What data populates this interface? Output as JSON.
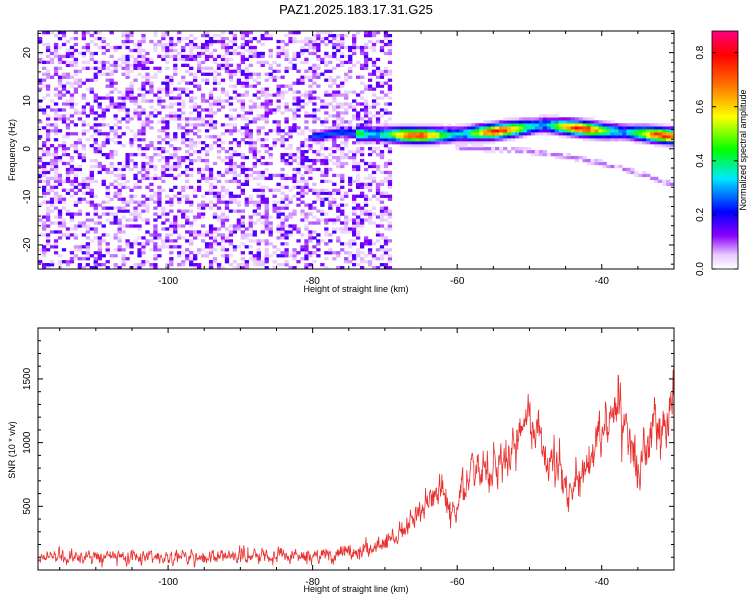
{
  "title": "PAZ1.2025.183.17.31.G25",
  "chart_data": [
    {
      "type": "heatmap",
      "xlabel": "Height of straight line (km)",
      "ylabel": "Frequency (Hz)",
      "xlim": [
        -118,
        -30
      ],
      "ylim": [
        -25,
        24.5
      ],
      "x_ticks": [
        -100,
        -80,
        -60,
        -40
      ],
      "y_ticks": [
        20,
        10,
        0,
        -10,
        -20
      ],
      "colorbar": {
        "label": "Normalized spectral amplitude",
        "range": [
          0,
          0.88
        ],
        "ticks": [
          0.0,
          0.2,
          0.4,
          0.6,
          0.8
        ]
      },
      "signal_ridge": {
        "x": [
          -80,
          -76,
          -74,
          -70,
          -65,
          -60,
          -55,
          -50,
          -48,
          -45,
          -40,
          -35,
          -30
        ],
        "y": [
          2.5,
          3.5,
          3.2,
          3.0,
          2.8,
          3.0,
          3.6,
          4.6,
          5.0,
          4.6,
          3.8,
          3.3,
          2.6
        ]
      },
      "secondary_ridge": {
        "x": [
          -60,
          -55,
          -50,
          -45,
          -40,
          -35,
          -30
        ],
        "y": [
          0.2,
          0.0,
          -0.5,
          -1.5,
          -3.0,
          -5.0,
          -7.5
        ]
      },
      "noise_region_x": [
        -118,
        -69
      ]
    },
    {
      "type": "line",
      "xlabel": "Height of straight line (km)",
      "ylabel": "SNR (10 * v/v)",
      "xlim": [
        -118,
        -30
      ],
      "ylim": [
        0,
        1900
      ],
      "x_ticks": [
        -100,
        -80,
        -60,
        -40
      ],
      "y_ticks": [
        500,
        1000,
        1500
      ],
      "color": "#e8302e",
      "envelope": {
        "x": [
          -118,
          -100,
          -82,
          -75,
          -70,
          -66,
          -64,
          -62,
          -60,
          -58,
          -55,
          -52,
          -50,
          -48,
          -45,
          -42,
          -40,
          -38,
          -35,
          -33,
          -32,
          -31,
          -30
        ],
        "y": [
          100,
          100,
          105,
          120,
          200,
          380,
          530,
          620,
          500,
          780,
          800,
          950,
          1300,
          900,
          650,
          800,
          1150,
          1250,
          800,
          1100,
          1250,
          1050,
          1550
        ]
      },
      "noise_amplitude": {
        "x": [
          -118,
          -80,
          -72,
          -66,
          -60,
          -50,
          -40,
          -33,
          -31,
          -30
        ],
        "y": [
          90,
          100,
          120,
          160,
          230,
          300,
          320,
          330,
          400,
          400
        ]
      }
    }
  ]
}
